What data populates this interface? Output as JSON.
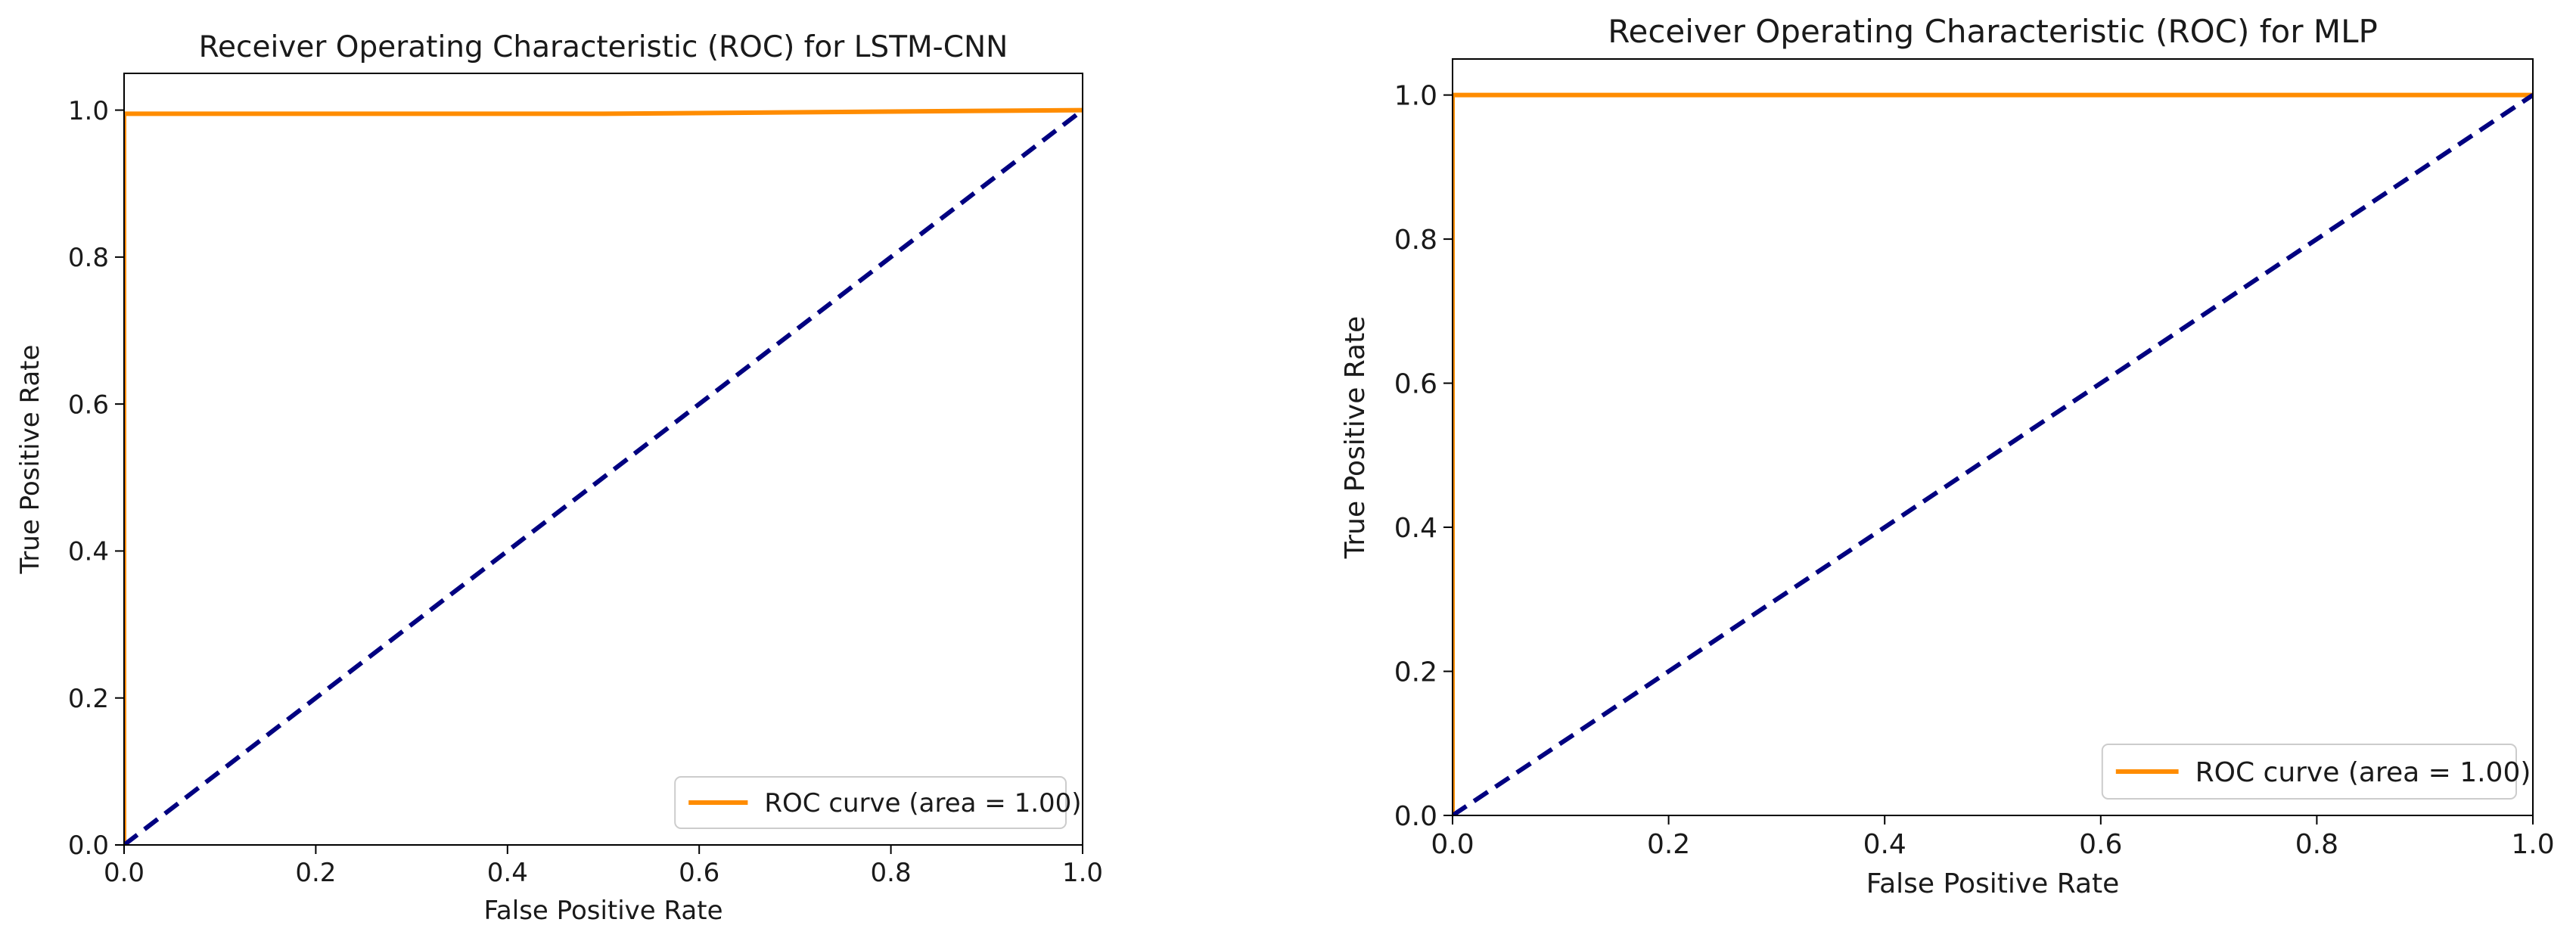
{
  "chart_data": [
    {
      "type": "line",
      "title": "Receiver Operating Characteristic (ROC) for LSTM-CNN",
      "xlabel": "False Positive Rate",
      "ylabel": "True Positive Rate",
      "xlim": [
        0.0,
        1.0
      ],
      "ylim": [
        0.0,
        1.05
      ],
      "xticks": [
        "0.0",
        "0.2",
        "0.4",
        "0.6",
        "0.8",
        "1.0"
      ],
      "yticks": [
        "0.0",
        "0.2",
        "0.4",
        "0.6",
        "0.8",
        "1.0"
      ],
      "grid": false,
      "legend_position": "lower-right",
      "series": [
        {
          "name": "ROC curve (area = 1.00)",
          "color": "#ff8c00",
          "style": "solid",
          "in_legend": true,
          "x": [
            0.0,
            0.0,
            0.5,
            1.0
          ],
          "y": [
            0.0,
            0.995,
            0.995,
            1.0
          ]
        },
        {
          "name": "chance",
          "color": "#000080",
          "style": "dashed",
          "in_legend": false,
          "x": [
            0.0,
            1.0
          ],
          "y": [
            0.0,
            1.0
          ]
        }
      ]
    },
    {
      "type": "line",
      "title": "Receiver Operating Characteristic (ROC) for MLP",
      "xlabel": "False Positive Rate",
      "ylabel": "True Positive Rate",
      "xlim": [
        0.0,
        1.0
      ],
      "ylim": [
        0.0,
        1.05
      ],
      "xticks": [
        "0.0",
        "0.2",
        "0.4",
        "0.6",
        "0.8",
        "1.0"
      ],
      "yticks": [
        "0.0",
        "0.2",
        "0.4",
        "0.6",
        "0.8",
        "1.0"
      ],
      "grid": false,
      "legend_position": "lower-right",
      "series": [
        {
          "name": "ROC curve (area = 1.00)",
          "color": "#ff8c00",
          "style": "solid",
          "in_legend": true,
          "x": [
            0.0,
            0.0,
            1.0
          ],
          "y": [
            0.0,
            1.0,
            1.0
          ]
        },
        {
          "name": "chance",
          "color": "#000080",
          "style": "dashed",
          "in_legend": false,
          "x": [
            0.0,
            1.0
          ],
          "y": [
            0.0,
            1.0
          ]
        }
      ]
    }
  ]
}
